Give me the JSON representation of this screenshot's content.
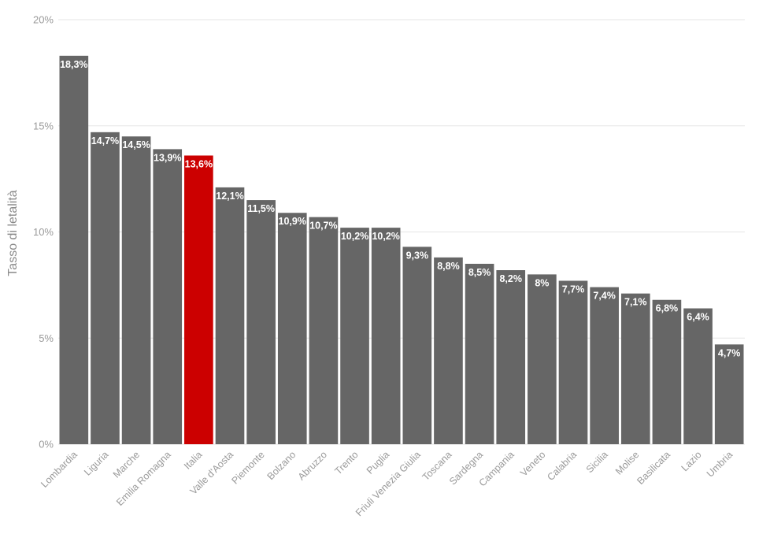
{
  "chart_data": {
    "type": "bar",
    "ylabel": "Tasso di letalità",
    "ylim": [
      0,
      20
    ],
    "yticks": [
      0,
      5,
      10,
      15,
      20
    ],
    "ytick_labels": [
      "0%",
      "5%",
      "10%",
      "15%",
      "20%"
    ],
    "grid": true,
    "categories": [
      "Lombardia",
      "Liguria",
      "Marche",
      "Emilia Romagna",
      "Italia",
      "Valle d'Aosta",
      "Piemonte",
      "Bolzano",
      "Abruzzo",
      "Trento",
      "Puglia",
      "Friuli Venezia Giulia",
      "Toscana",
      "Sardegna",
      "Campania",
      "Veneto",
      "Calabria",
      "Sicilia",
      "Molise",
      "Basilicata",
      "Lazio",
      "Umbria"
    ],
    "values": [
      18.3,
      14.7,
      14.5,
      13.9,
      13.6,
      12.1,
      11.5,
      10.9,
      10.7,
      10.2,
      10.2,
      9.3,
      8.8,
      8.5,
      8.2,
      8.0,
      7.7,
      7.4,
      7.1,
      6.8,
      6.4,
      4.7
    ],
    "data_labels": [
      "18,3%",
      "14,7%",
      "14,5%",
      "13,9%",
      "13,6%",
      "12,1%",
      "11,5%",
      "10,9%",
      "10,7%",
      "10,2%",
      "10,2%",
      "9,3%",
      "8,8%",
      "8,5%",
      "8,2%",
      "8%",
      "7,7%",
      "7,4%",
      "7,1%",
      "6,8%",
      "6,4%",
      "4,7%"
    ],
    "highlight_category": "Italia",
    "colors": {
      "bar": "#666666",
      "highlight": "#cc0000",
      "grid": "#e6e6e6"
    }
  }
}
